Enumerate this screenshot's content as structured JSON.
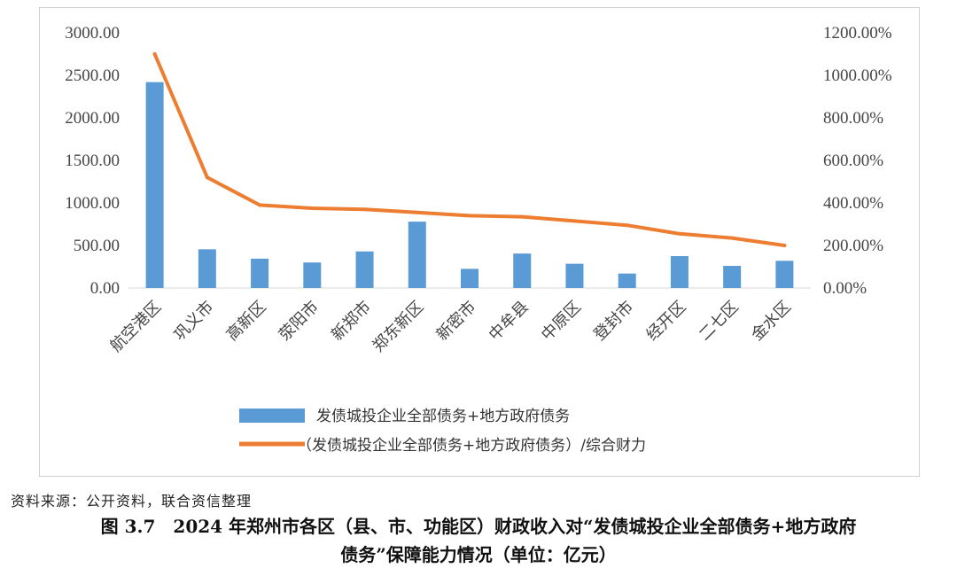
{
  "chart_data": {
    "type": "bar",
    "categories": [
      "航空港区",
      "巩义市",
      "高新区",
      "荥阳市",
      "新郑市",
      "郑东新区",
      "新密市",
      "中牟县",
      "中原区",
      "登封市",
      "经开区",
      "二七区",
      "金水区"
    ],
    "series": [
      {
        "name": "发债城投企业全部债务+地方政府债务",
        "type": "bar",
        "axis": "left",
        "color": "#5B9BD5",
        "values": [
          2420,
          455,
          345,
          300,
          430,
          780,
          225,
          405,
          285,
          170,
          375,
          260,
          320
        ]
      },
      {
        "name": "（发债城投企业全部债务+地方政府债务）/综合财力",
        "type": "line",
        "axis": "right",
        "color": "#ED7D31",
        "values": [
          1100,
          520,
          390,
          375,
          370,
          355,
          340,
          335,
          315,
          295,
          255,
          235,
          200
        ]
      }
    ],
    "y_left": {
      "ylim": [
        0,
        3000
      ],
      "ticks": [
        "0.00",
        "500.00",
        "1000.00",
        "1500.00",
        "2000.00",
        "2500.00",
        "3000.00"
      ]
    },
    "y_right": {
      "ylim": [
        0,
        1200
      ],
      "ticks": [
        "0.00%",
        "200.00%",
        "400.00%",
        "600.00%",
        "800.00%",
        "1000.00%",
        "1200.00%"
      ]
    },
    "grid": false,
    "legend_position": "bottom"
  },
  "source": "资料来源：公开资料，联合资信整理",
  "caption_line1": "图 3.7　2024 年郑州市各区（县、市、功能区）财政收入对“发债城投企业全部债务+地方政府",
  "caption_line2": "债务”保障能力情况（单位：亿元）"
}
